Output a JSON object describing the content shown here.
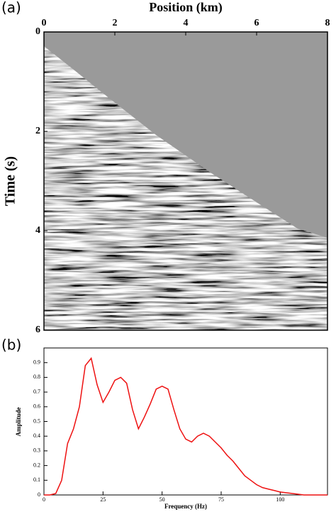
{
  "chart_data": [
    {
      "type": "image",
      "label": "(a)",
      "xlabel": "Position (km)",
      "ylabel": "Time (s)",
      "xlim": [
        0,
        8
      ],
      "xticks": [
        0,
        2,
        4,
        6,
        8
      ],
      "x_axis_position": "top",
      "ylim": [
        0,
        6
      ],
      "yticks": [
        0,
        2,
        4,
        6
      ],
      "y_inverted": true
    },
    {
      "type": "line",
      "label": "(b)",
      "xlabel": "Frequency (Hz)",
      "ylabel": "Amplitude",
      "color": "#ee1111",
      "x": [
        0,
        2.5,
        5,
        7.5,
        10,
        12.5,
        15,
        17.5,
        20,
        22.5,
        25,
        27.5,
        30,
        32.5,
        35,
        37.5,
        40,
        42.5,
        45,
        47.5,
        50,
        52.5,
        55,
        57.5,
        60,
        62.5,
        65,
        67.5,
        70,
        72.5,
        75,
        77.5,
        80,
        82.5,
        85,
        87.5,
        90,
        92.5,
        95,
        97.5,
        100,
        105,
        110,
        120
      ],
      "values": [
        0,
        0,
        0.01,
        0.1,
        0.35,
        0.45,
        0.6,
        0.88,
        0.93,
        0.75,
        0.63,
        0.7,
        0.78,
        0.8,
        0.76,
        0.58,
        0.45,
        0.53,
        0.62,
        0.72,
        0.74,
        0.72,
        0.58,
        0.45,
        0.38,
        0.36,
        0.4,
        0.42,
        0.4,
        0.36,
        0.32,
        0.27,
        0.23,
        0.18,
        0.13,
        0.1,
        0.07,
        0.05,
        0.04,
        0.03,
        0.02,
        0.01,
        0,
        0
      ],
      "xlim": [
        0,
        120
      ],
      "xticks": [
        0,
        25,
        50,
        75,
        100
      ],
      "ylim": [
        0,
        1
      ],
      "yticks": [
        0,
        0.1,
        0.2,
        0.3,
        0.4,
        0.5,
        0.6,
        0.7,
        0.8,
        0.9
      ]
    }
  ]
}
